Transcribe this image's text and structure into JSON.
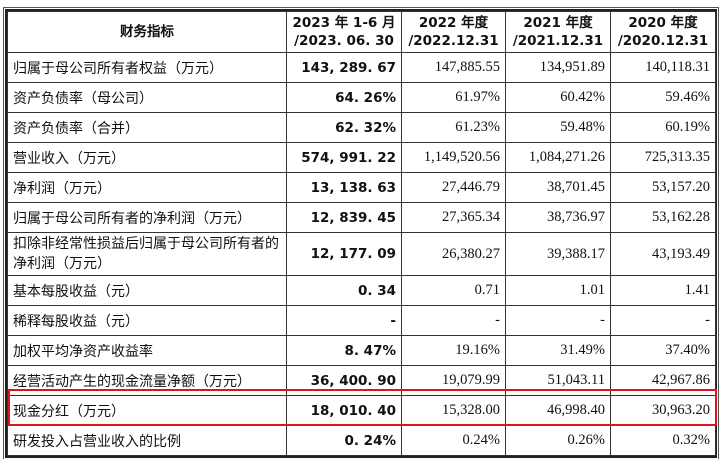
{
  "header": {
    "indicator": "财务指标",
    "col1_line1": "2023 年 1-6 月",
    "col1_line2": "/2023. 06. 30",
    "col2_line1": "2022 年度",
    "col2_line2": "/2022.12.31",
    "col3_line1": "2021 年度",
    "col3_line2": "/2021.12.31",
    "col4_line1": "2020 年度",
    "col4_line2": "/2020.12.31"
  },
  "rows": [
    {
      "label": "归属于母公司所有者权益（万元）",
      "v": [
        "143, 289. 67",
        "147,885.55",
        "134,951.89",
        "140,118.31"
      ]
    },
    {
      "label": "资产负债率（母公司）",
      "v": [
        "64. 26%",
        "61.97%",
        "60.42%",
        "59.46%"
      ]
    },
    {
      "label": "资产负债率（合并）",
      "v": [
        "62. 32%",
        "61.23%",
        "59.48%",
        "60.19%"
      ]
    },
    {
      "label": "营业收入（万元）",
      "v": [
        "574, 991. 22",
        "1,149,520.56",
        "1,084,271.26",
        "725,313.35"
      ]
    },
    {
      "label": "净利润（万元）",
      "v": [
        "13, 138. 63",
        "27,446.79",
        "38,701.45",
        "53,157.20"
      ]
    },
    {
      "label": "归属于母公司所有者的净利润（万元）",
      "v": [
        "12, 839. 45",
        "27,365.34",
        "38,736.97",
        "53,162.28"
      ]
    },
    {
      "label": "扣除非经常性损益后归属于母公司所有者的净利润（万元）",
      "v": [
        "12, 177. 09",
        "26,380.27",
        "39,388.17",
        "43,193.49"
      ]
    },
    {
      "label": "基本每股收益（元）",
      "v": [
        "0. 34",
        "0.71",
        "1.01",
        "1.41"
      ]
    },
    {
      "label": "稀释每股收益（元）",
      "v": [
        "-",
        "-",
        "-",
        "-"
      ]
    },
    {
      "label": "加权平均净资产收益率",
      "v": [
        "8. 47%",
        "19.16%",
        "31.49%",
        "37.40%"
      ]
    },
    {
      "label": "经营活动产生的现金流量净额（万元）",
      "v": [
        "36, 400. 90",
        "19,079.99",
        "51,043.11",
        "42,967.86"
      ]
    },
    {
      "label": "现金分红（万元）",
      "v": [
        "18, 010. 40",
        "15,328.00",
        "46,998.40",
        "30,963.20"
      ]
    },
    {
      "label": "研发投入占营业收入的比例",
      "v": [
        "0. 24%",
        "0.24%",
        "0.26%",
        "0.32%"
      ]
    }
  ],
  "highlight_color": "#e0141e"
}
